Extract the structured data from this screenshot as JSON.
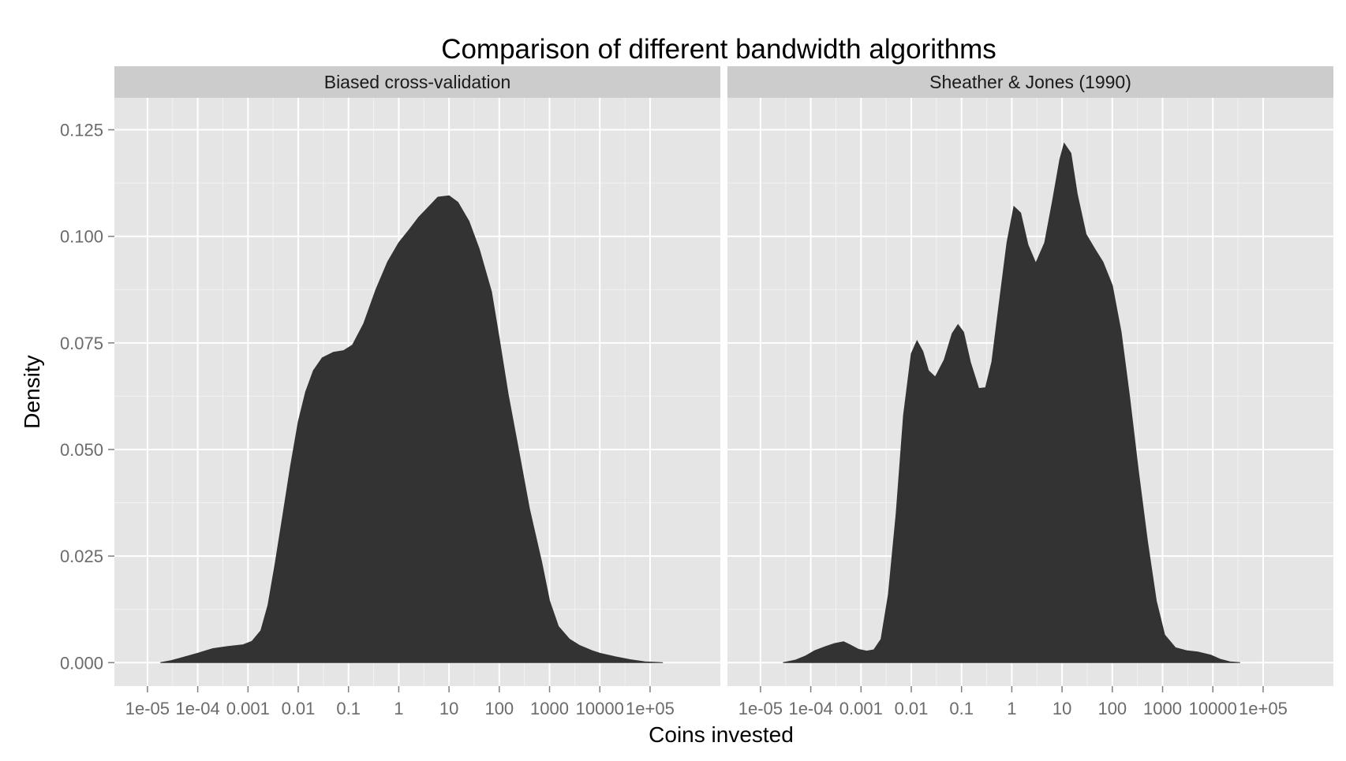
{
  "chart_data": {
    "type": "area",
    "title": "Comparison of different bandwidth algorithms",
    "xlabel": "Coins invested",
    "ylabel": "Density",
    "x_scale": "log10",
    "xlim": [
      2.2e-06,
      2500000
    ],
    "ylim": [
      -0.0055,
      0.1325
    ],
    "x_ticks": [
      1e-05,
      0.0001,
      0.001,
      0.01,
      0.1,
      1,
      10,
      100,
      1000,
      10000,
      100000
    ],
    "x_tick_labels": [
      "1e-05",
      "1e-04",
      "0.001",
      "0.01",
      "0.1",
      "1",
      "10",
      "100",
      "1000",
      "10000",
      "1e+05"
    ],
    "y_ticks": [
      0,
      0.025,
      0.05,
      0.075,
      0.1,
      0.125
    ],
    "y_tick_labels": [
      "0.000",
      "0.025",
      "0.050",
      "0.075",
      "0.100",
      "0.125"
    ],
    "grid": true,
    "fill_color": "#333333",
    "panel_background": "#e5e5e5",
    "strip_background": "#cccccc",
    "panels": [
      {
        "label": "Biased cross-validation",
        "x": [
          1.8e-05,
          3e-05,
          5e-05,
          0.0001,
          0.0002,
          0.0004,
          0.0008,
          0.0012,
          0.0018,
          0.0025,
          0.0035,
          0.005,
          0.007,
          0.01,
          0.014,
          0.02,
          0.03,
          0.05,
          0.08,
          0.12,
          0.2,
          0.35,
          0.6,
          1,
          1.6,
          2.5,
          4,
          6,
          10,
          15,
          25,
          40,
          70,
          100,
          150,
          250,
          400,
          700,
          1000,
          1500,
          2500,
          4000,
          7000,
          10000,
          20000,
          40000,
          80000,
          180000
        ],
        "y": [
          0.0,
          0.0005,
          0.0012,
          0.0022,
          0.0033,
          0.0038,
          0.0042,
          0.005,
          0.0075,
          0.0135,
          0.0235,
          0.035,
          0.046,
          0.0565,
          0.0635,
          0.0685,
          0.0715,
          0.0728,
          0.0732,
          0.0745,
          0.0795,
          0.0875,
          0.094,
          0.0985,
          0.1015,
          0.1045,
          0.107,
          0.1092,
          0.1095,
          0.108,
          0.1035,
          0.097,
          0.087,
          0.076,
          0.063,
          0.049,
          0.036,
          0.0235,
          0.0145,
          0.0085,
          0.0055,
          0.004,
          0.0028,
          0.0022,
          0.0014,
          0.0007,
          0.0002,
          0.0
        ]
      },
      {
        "label": "Sheather & Jones (1990)",
        "x": [
          2.8e-05,
          5e-05,
          8e-05,
          0.00012,
          0.0002,
          0.0003,
          0.00045,
          0.0006,
          0.0009,
          0.0013,
          0.0018,
          0.0025,
          0.0035,
          0.005,
          0.007,
          0.01,
          0.013,
          0.017,
          0.022,
          0.03,
          0.045,
          0.065,
          0.085,
          0.11,
          0.15,
          0.22,
          0.3,
          0.4,
          0.55,
          0.8,
          1.1,
          1.5,
          2.1,
          3,
          4.5,
          6.5,
          9,
          11,
          15,
          20,
          30,
          45,
          65,
          100,
          150,
          220,
          330,
          500,
          750,
          1100,
          1800,
          3000,
          5000,
          9000,
          14000,
          22000,
          35000
        ],
        "y": [
          0.0,
          0.0006,
          0.0016,
          0.0028,
          0.0038,
          0.0045,
          0.0049,
          0.0042,
          0.0031,
          0.0027,
          0.003,
          0.0055,
          0.016,
          0.035,
          0.058,
          0.0725,
          0.0755,
          0.073,
          0.0685,
          0.067,
          0.071,
          0.0772,
          0.0793,
          0.0775,
          0.0705,
          0.0643,
          0.0645,
          0.0705,
          0.0835,
          0.0985,
          0.107,
          0.1055,
          0.098,
          0.0937,
          0.0985,
          0.1085,
          0.118,
          0.1218,
          0.1195,
          0.11,
          0.1005,
          0.097,
          0.094,
          0.0885,
          0.0775,
          0.0625,
          0.045,
          0.0285,
          0.0145,
          0.0065,
          0.0035,
          0.0028,
          0.0025,
          0.0018,
          0.0008,
          0.0002,
          0.0
        ]
      }
    ]
  }
}
